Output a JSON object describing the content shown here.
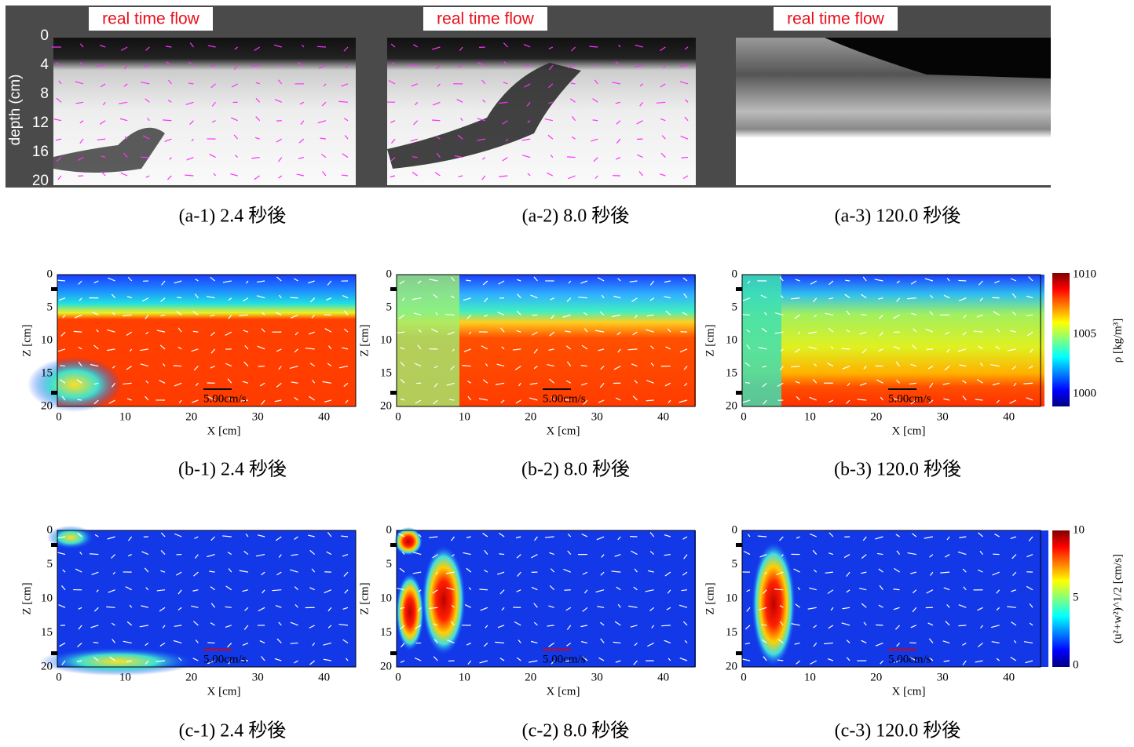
{
  "row_a": {
    "depth_axis": {
      "label": "depth (cm)",
      "ticks": [
        "0",
        "4",
        "8",
        "12",
        "16",
        "20"
      ]
    },
    "panels": [
      {
        "banner": "real time flow",
        "caption": "(a-1) 2.4 秒後"
      },
      {
        "banner": "real time flow",
        "caption": "(a-2) 8.0 秒後"
      },
      {
        "banner": "real time flow",
        "caption": "(a-3) 120.0 秒後"
      }
    ]
  },
  "row_b": {
    "panels": [
      {
        "caption": "(b-1) 2.4 秒後",
        "scale_label": "5.00cm/s",
        "x_label": "X [cm]",
        "y_label": "Z [cm]",
        "x_ticks": [
          "0",
          "10",
          "20",
          "30",
          "40"
        ],
        "y_ticks": [
          "0",
          "5",
          "10",
          "15",
          "20"
        ]
      },
      {
        "caption": "(b-2) 8.0 秒後",
        "scale_label": "5.00cm/s",
        "x_label": "X [cm]",
        "y_label": "Z [cm]",
        "x_ticks": [
          "0",
          "10",
          "20",
          "30",
          "40"
        ],
        "y_ticks": [
          "0",
          "5",
          "10",
          "15",
          "20"
        ]
      },
      {
        "caption": "(b-3) 120.0 秒後",
        "scale_label": "5.00cm/s",
        "x_label": "X [cm]",
        "y_label": "Z [cm]",
        "x_ticks": [
          "0",
          "10",
          "20",
          "30",
          "40"
        ],
        "y_ticks": [
          "0",
          "5",
          "10",
          "15",
          "20"
        ]
      }
    ],
    "colorbar": {
      "label": "ρ [kg/m³]",
      "ticks": [
        "1010",
        "1005",
        "1000"
      ]
    }
  },
  "row_c": {
    "panels": [
      {
        "caption": "(c-1) 2.4 秒後",
        "scale_label": "5.00cm/s",
        "x_label": "X [cm]",
        "y_label": "Z [cm]",
        "x_ticks": [
          "0",
          "10",
          "20",
          "30",
          "40"
        ],
        "y_ticks": [
          "0",
          "5",
          "10",
          "15",
          "20"
        ]
      },
      {
        "caption": "(c-2) 8.0 秒後",
        "scale_label": "5.00cm/s",
        "x_label": "X [cm]",
        "y_label": "Z [cm]",
        "x_ticks": [
          "0",
          "10",
          "20",
          "30",
          "40"
        ],
        "y_ticks": [
          "0",
          "5",
          "10",
          "15",
          "20"
        ]
      },
      {
        "caption": "(c-3) 120.0 秒後",
        "scale_label": "5.00cm/s",
        "x_label": "X [cm]",
        "y_label": "Z [cm]",
        "x_ticks": [
          "0",
          "10",
          "20",
          "30",
          "40"
        ],
        "y_ticks": [
          "0",
          "5",
          "10",
          "15",
          "20"
        ]
      }
    ],
    "colorbar": {
      "label": "(u²+w²)^1/2 [cm/s]",
      "ticks": [
        "10",
        "5",
        "0"
      ]
    }
  }
}
